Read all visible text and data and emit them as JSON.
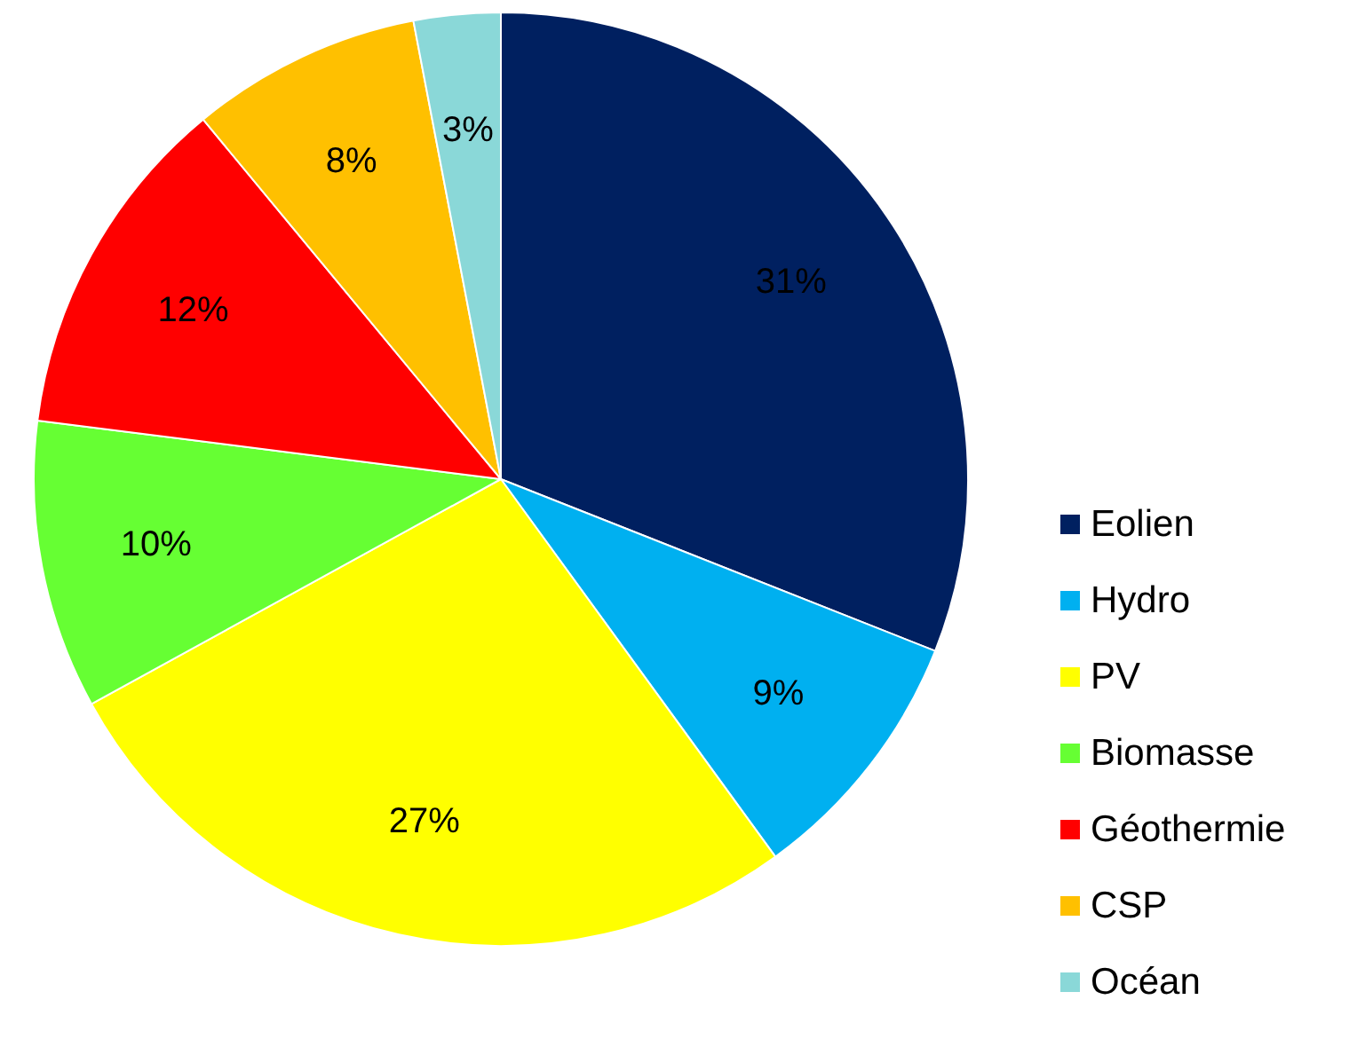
{
  "chart_data": {
    "type": "pie",
    "categories": [
      "Eolien",
      "Hydro",
      "PV",
      "Biomasse",
      "Géothermie",
      "CSP",
      "Océan"
    ],
    "values": [
      31,
      9,
      27,
      10,
      12,
      8,
      3
    ],
    "colors": [
      "#002060",
      "#00b0f0",
      "#ffff00",
      "#66ff33",
      "#ff0000",
      "#ffc000",
      "#8ad8d8"
    ],
    "value_labels": [
      "31%",
      "9%",
      "27%",
      "10%",
      "12%",
      "8%",
      "3%"
    ],
    "legend": "right"
  }
}
